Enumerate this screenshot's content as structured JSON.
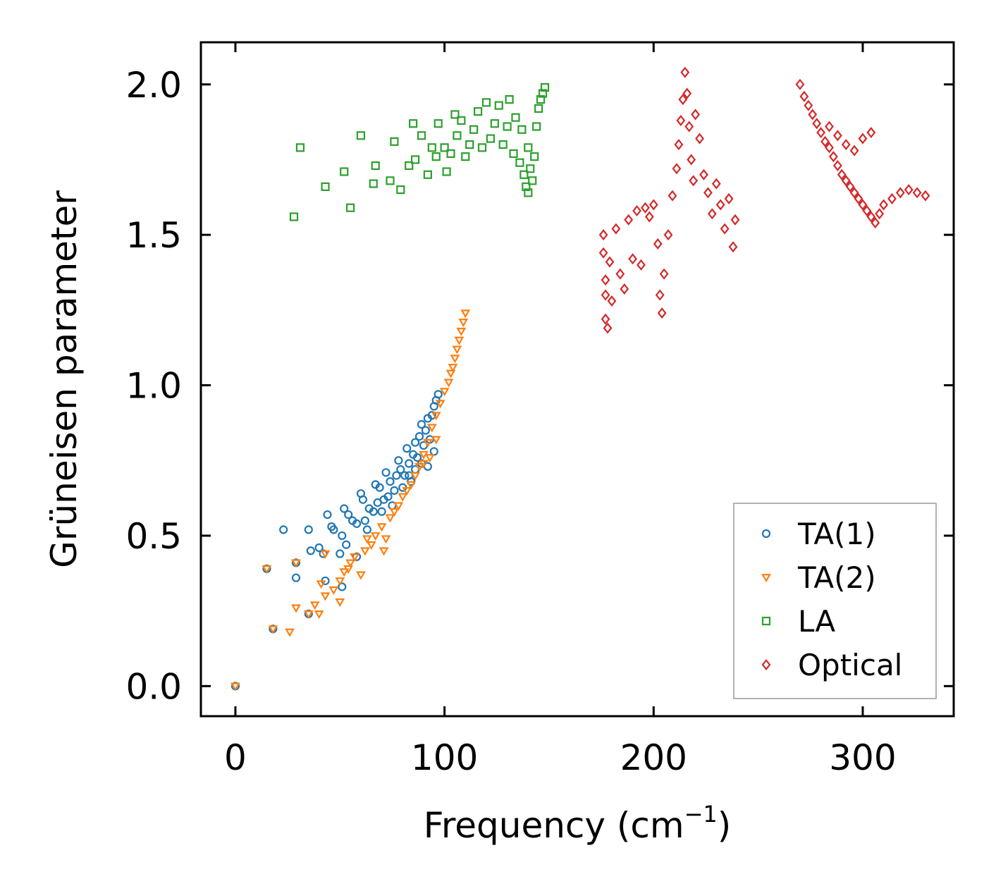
{
  "chart_data": {
    "type": "scatter",
    "xlabel": "Frequency (cm",
    "xlabel_superscript": "−1",
    "xlabel_suffix": ")",
    "ylabel": "Grüneisen parameter",
    "xlim": [
      -16.5,
      343.5
    ],
    "ylim": [
      -0.1,
      2.14
    ],
    "x_ticks": [
      0,
      100,
      200,
      300
    ],
    "x_tick_labels": [
      "0",
      "100",
      "200",
      "300"
    ],
    "y_ticks": [
      0.0,
      0.5,
      1.0,
      1.5,
      2.0
    ],
    "y_tick_labels": [
      "0.0",
      "0.5",
      "1.0",
      "1.5",
      "2.0"
    ],
    "grid": false,
    "legend_position": "lower-right",
    "series": [
      {
        "name": "TA(1)",
        "marker": "circle",
        "color": "#1f77b4",
        "points": [
          [
            0,
            0.0
          ],
          [
            15,
            0.39
          ],
          [
            18,
            0.19
          ],
          [
            23,
            0.52
          ],
          [
            29,
            0.41
          ],
          [
            29,
            0.36
          ],
          [
            35,
            0.24
          ],
          [
            35,
            0.52
          ],
          [
            36,
            0.45
          ],
          [
            40,
            0.46
          ],
          [
            42,
            0.44
          ],
          [
            43,
            0.35
          ],
          [
            44,
            0.57
          ],
          [
            46,
            0.53
          ],
          [
            47,
            0.52
          ],
          [
            50,
            0.44
          ],
          [
            51,
            0.33
          ],
          [
            51,
            0.5
          ],
          [
            52,
            0.59
          ],
          [
            53,
            0.47
          ],
          [
            54,
            0.57
          ],
          [
            56,
            0.55
          ],
          [
            58,
            0.43
          ],
          [
            58,
            0.54
          ],
          [
            60,
            0.64
          ],
          [
            61,
            0.62
          ],
          [
            62,
            0.55
          ],
          [
            63,
            0.52
          ],
          [
            64,
            0.59
          ],
          [
            66,
            0.58
          ],
          [
            67,
            0.67
          ],
          [
            68,
            0.61
          ],
          [
            69,
            0.66
          ],
          [
            70,
            0.58
          ],
          [
            71,
            0.62
          ],
          [
            72,
            0.71
          ],
          [
            73,
            0.63
          ],
          [
            74,
            0.68
          ],
          [
            75,
            0.6
          ],
          [
            76,
            0.65
          ],
          [
            77,
            0.7
          ],
          [
            78,
            0.75
          ],
          [
            79,
            0.72
          ],
          [
            80,
            0.66
          ],
          [
            81,
            0.7
          ],
          [
            82,
            0.79
          ],
          [
            83,
            0.74
          ],
          [
            84,
            0.68
          ],
          [
            85,
            0.77
          ],
          [
            86,
            0.81
          ],
          [
            87,
            0.76
          ],
          [
            88,
            0.83
          ],
          [
            89,
            0.87
          ],
          [
            90,
            0.8
          ],
          [
            91,
            0.85
          ],
          [
            92,
            0.89
          ],
          [
            93,
            0.82
          ],
          [
            94,
            0.9
          ],
          [
            95,
            0.93
          ],
          [
            96,
            0.95
          ],
          [
            97,
            0.97
          ],
          [
            83,
            0.7
          ],
          [
            86,
            0.72
          ],
          [
            89,
            0.74
          ],
          [
            92,
            0.73
          ],
          [
            95,
            0.78
          ]
        ]
      },
      {
        "name": "TA(2)",
        "marker": "triangle-down",
        "color": "#ff7f0e",
        "points": [
          [
            0,
            0.0
          ],
          [
            15,
            0.39
          ],
          [
            18,
            0.19
          ],
          [
            26,
            0.18
          ],
          [
            29,
            0.41
          ],
          [
            29,
            0.26
          ],
          [
            35,
            0.24
          ],
          [
            38,
            0.27
          ],
          [
            40,
            0.24
          ],
          [
            41,
            0.34
          ],
          [
            43,
            0.3
          ],
          [
            43,
            0.44
          ],
          [
            47,
            0.32
          ],
          [
            50,
            0.35
          ],
          [
            50,
            0.28
          ],
          [
            52,
            0.38
          ],
          [
            54,
            0.39
          ],
          [
            55,
            0.41
          ],
          [
            57,
            0.43
          ],
          [
            60,
            0.37
          ],
          [
            62,
            0.45
          ],
          [
            63,
            0.49
          ],
          [
            65,
            0.47
          ],
          [
            67,
            0.5
          ],
          [
            70,
            0.53
          ],
          [
            71,
            0.45
          ],
          [
            72,
            0.49
          ],
          [
            74,
            0.56
          ],
          [
            76,
            0.58
          ],
          [
            78,
            0.6
          ],
          [
            80,
            0.63
          ],
          [
            82,
            0.65
          ],
          [
            84,
            0.67
          ],
          [
            86,
            0.7
          ],
          [
            88,
            0.73
          ],
          [
            90,
            0.77
          ],
          [
            92,
            0.81
          ],
          [
            94,
            0.86
          ],
          [
            96,
            0.9
          ],
          [
            98,
            0.94
          ],
          [
            100,
            0.98
          ],
          [
            102,
            1.01
          ],
          [
            103,
            1.04
          ],
          [
            104,
            1.06
          ],
          [
            105,
            1.09
          ],
          [
            106,
            1.12
          ],
          [
            107,
            1.15
          ],
          [
            108,
            1.18
          ],
          [
            109,
            1.21
          ],
          [
            110,
            1.24
          ],
          [
            96,
            0.82
          ],
          [
            93,
            0.76
          ],
          [
            90,
            0.74
          ]
        ]
      },
      {
        "name": "LA",
        "marker": "square",
        "color": "#2ca02c",
        "points": [
          [
            28,
            1.56
          ],
          [
            31,
            1.79
          ],
          [
            43,
            1.66
          ],
          [
            52,
            1.71
          ],
          [
            55,
            1.59
          ],
          [
            60,
            1.83
          ],
          [
            66,
            1.67
          ],
          [
            67,
            1.73
          ],
          [
            74,
            1.68
          ],
          [
            76,
            1.81
          ],
          [
            79,
            1.65
          ],
          [
            83,
            1.73
          ],
          [
            85,
            1.87
          ],
          [
            86,
            1.75
          ],
          [
            89,
            1.83
          ],
          [
            92,
            1.7
          ],
          [
            94,
            1.79
          ],
          [
            96,
            1.76
          ],
          [
            97,
            1.87
          ],
          [
            100,
            1.79
          ],
          [
            101,
            1.71
          ],
          [
            103,
            1.77
          ],
          [
            105,
            1.9
          ],
          [
            106,
            1.83
          ],
          [
            108,
            1.88
          ],
          [
            110,
            1.76
          ],
          [
            112,
            1.8
          ],
          [
            114,
            1.85
          ],
          [
            116,
            1.91
          ],
          [
            118,
            1.79
          ],
          [
            120,
            1.94
          ],
          [
            122,
            1.82
          ],
          [
            124,
            1.87
          ],
          [
            126,
            1.93
          ],
          [
            128,
            1.8
          ],
          [
            130,
            1.86
          ],
          [
            131,
            1.95
          ],
          [
            133,
            1.77
          ],
          [
            134,
            1.89
          ],
          [
            136,
            1.74
          ],
          [
            137,
            1.85
          ],
          [
            138,
            1.7
          ],
          [
            139,
            1.66
          ],
          [
            140,
            1.64
          ],
          [
            140,
            1.79
          ],
          [
            141,
            1.72
          ],
          [
            142,
            1.68
          ],
          [
            143,
            1.76
          ],
          [
            144,
            1.86
          ],
          [
            145,
            1.92
          ],
          [
            146,
            1.95
          ],
          [
            147,
            1.97
          ],
          [
            148,
            1.99
          ]
        ]
      },
      {
        "name": "Optical",
        "marker": "diamond",
        "color": "#d62728",
        "points": [
          [
            176,
            1.5
          ],
          [
            176,
            1.44
          ],
          [
            177,
            1.35
          ],
          [
            177,
            1.3
          ],
          [
            177,
            1.22
          ],
          [
            178,
            1.19
          ],
          [
            179,
            1.41
          ],
          [
            180,
            1.28
          ],
          [
            182,
            1.52
          ],
          [
            184,
            1.37
          ],
          [
            186,
            1.32
          ],
          [
            188,
            1.55
          ],
          [
            190,
            1.42
          ],
          [
            192,
            1.58
          ],
          [
            194,
            1.4
          ],
          [
            196,
            1.59
          ],
          [
            198,
            1.56
          ],
          [
            200,
            1.6
          ],
          [
            202,
            1.47
          ],
          [
            203,
            1.3
          ],
          [
            204,
            1.24
          ],
          [
            205,
            1.37
          ],
          [
            207,
            1.5
          ],
          [
            209,
            1.63
          ],
          [
            211,
            1.72
          ],
          [
            212,
            1.8
          ],
          [
            213,
            1.88
          ],
          [
            214,
            1.95
          ],
          [
            215,
            2.04
          ],
          [
            216,
            1.97
          ],
          [
            217,
            1.86
          ],
          [
            218,
            1.75
          ],
          [
            219,
            1.68
          ],
          [
            220,
            1.9
          ],
          [
            222,
            1.82
          ],
          [
            224,
            1.7
          ],
          [
            226,
            1.64
          ],
          [
            228,
            1.57
          ],
          [
            230,
            1.67
          ],
          [
            232,
            1.6
          ],
          [
            234,
            1.52
          ],
          [
            236,
            1.62
          ],
          [
            238,
            1.46
          ],
          [
            239,
            1.55
          ],
          [
            270,
            2.0
          ],
          [
            272,
            1.96
          ],
          [
            274,
            1.93
          ],
          [
            276,
            1.9
          ],
          [
            278,
            1.87
          ],
          [
            280,
            1.84
          ],
          [
            282,
            1.81
          ],
          [
            284,
            1.79
          ],
          [
            286,
            1.76
          ],
          [
            288,
            1.73
          ],
          [
            290,
            1.7
          ],
          [
            292,
            1.68
          ],
          [
            294,
            1.66
          ],
          [
            296,
            1.64
          ],
          [
            298,
            1.62
          ],
          [
            300,
            1.6
          ],
          [
            302,
            1.58
          ],
          [
            304,
            1.56
          ],
          [
            306,
            1.54
          ],
          [
            308,
            1.57
          ],
          [
            310,
            1.6
          ],
          [
            314,
            1.62
          ],
          [
            318,
            1.64
          ],
          [
            322,
            1.65
          ],
          [
            326,
            1.64
          ],
          [
            330,
            1.63
          ],
          [
            292,
            1.8
          ],
          [
            296,
            1.78
          ],
          [
            300,
            1.82
          ],
          [
            304,
            1.84
          ],
          [
            284,
            1.86
          ],
          [
            288,
            1.83
          ]
        ]
      }
    ]
  }
}
